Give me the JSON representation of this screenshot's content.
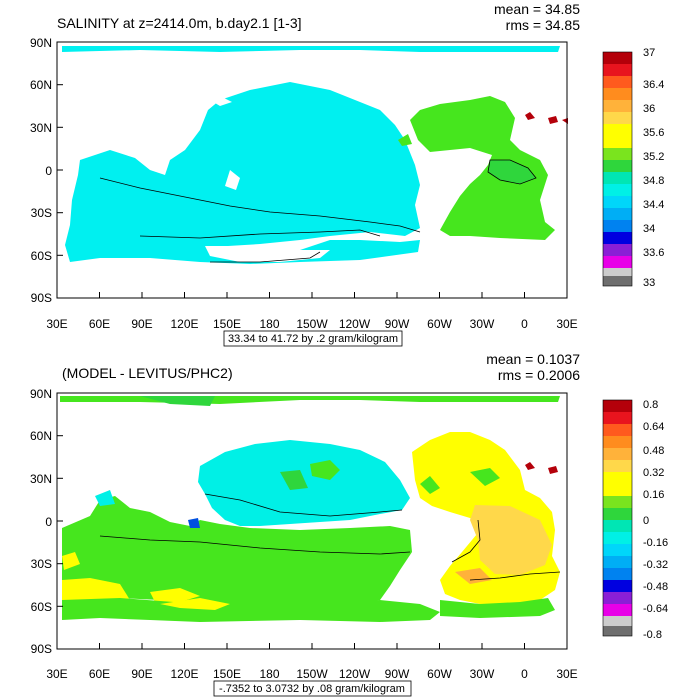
{
  "colors": {
    "palette": [
      "#6e6e6e",
      "#cccccc",
      "#e800e8",
      "#8a1fd6",
      "#0000e0",
      "#0050e0",
      "#0082f0",
      "#00aef5",
      "#00d6fa",
      "#00f0e6",
      "#00e6b4",
      "#2fd63c",
      "#7ae41e",
      "#ffff00",
      "#ffd84a",
      "#ffb23a",
      "#ff8c1e",
      "#ff5a1e",
      "#e8141e",
      "#b4000a"
    ],
    "ocean_salinity": "#00f0f0",
    "atlantic_salinity": "#46e61e",
    "land": "#ffffff",
    "contour": "#000000"
  },
  "panels": [
    {
      "id": "salinity",
      "title": "SALINITY at z=2414.0m, b.day2.1 [1-3]",
      "mean_label": "mean = 34.85",
      "rms_label": "rms = 34.85",
      "info_box": "33.34 to 41.72 by .2 gram/kilogram",
      "colorbar_labels": [
        "33",
        "33.6",
        "34",
        "34.4",
        "34.8",
        "35.2",
        "35.6",
        "36",
        "36.4",
        "37"
      ]
    },
    {
      "id": "difference",
      "title": "(MODEL - LEVITUS/PHC2)",
      "mean_label": "mean = 0.1037",
      "rms_label": "rms = 0.2006",
      "info_box": "-.7352 to 3.0732 by .08 gram/kilogram",
      "colorbar_labels": [
        "-0.8",
        "-0.64",
        "-0.48",
        "-0.32",
        "-0.16",
        "0",
        "0.16",
        "0.32",
        "0.48",
        "0.64",
        "0.8"
      ]
    }
  ],
  "chart_data": [
    {
      "type": "heatmap",
      "title": "SALINITY at z=2414.0m, b.day2.1 [1-3]",
      "x_ticks": [
        "30E",
        "60E",
        "90E",
        "120E",
        "150E",
        "180",
        "150W",
        "120W",
        "90W",
        "60W",
        "30W",
        "0",
        "30E"
      ],
      "y_ticks": [
        "90N",
        "60N",
        "30N",
        "0",
        "30S",
        "60S",
        "90S"
      ],
      "colorbar": [
        "33",
        "33.6",
        "34",
        "34.4",
        "34.8",
        "35.2",
        "35.6",
        "36",
        "36.4",
        "37"
      ],
      "stats": {
        "mean": 34.85,
        "rms": 34.85
      },
      "range": "33.34 to 41.72 by .2 gram/kilogram"
    },
    {
      "type": "heatmap",
      "title": "(MODEL - LEVITUS/PHC2)",
      "x_ticks": [
        "30E",
        "60E",
        "90E",
        "120E",
        "150E",
        "180",
        "150W",
        "120W",
        "90W",
        "60W",
        "30W",
        "0",
        "30E"
      ],
      "y_ticks": [
        "90N",
        "60N",
        "30N",
        "0",
        "30S",
        "60S",
        "90S"
      ],
      "colorbar": [
        "-0.8",
        "-0.64",
        "-0.48",
        "-0.32",
        "-0.16",
        "0",
        "0.16",
        "0.32",
        "0.48",
        "0.64",
        "0.8"
      ],
      "stats": {
        "mean": 0.1037,
        "rms": 0.2006
      },
      "range": "-.7352 to 3.0732 by .08 gram/kilogram"
    }
  ]
}
